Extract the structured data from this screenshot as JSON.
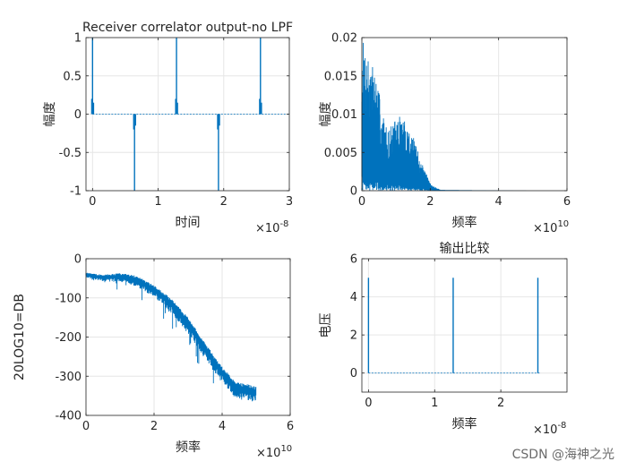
{
  "figure": {
    "background": "#ffffff",
    "line_color": "#0072BD",
    "grid_color": "#e6e6e6",
    "axis_color": "#262626"
  },
  "watermark": "CSDN @海神之光",
  "chart_data": [
    {
      "id": "p1",
      "type": "line",
      "title": "Receiver correlator output-no LPF",
      "xlabel": "时间",
      "ylabel": "幅度",
      "xlim": [
        -0.1,
        3
      ],
      "ylim": [
        -1,
        1
      ],
      "xticks": [
        0,
        1,
        2,
        3
      ],
      "xtick_labels": [
        "0",
        "1",
        "2",
        "3"
      ],
      "yticks": [
        -1,
        -0.5,
        0,
        0.5,
        1
      ],
      "ytick_labels": [
        "-1",
        "-0.5",
        "0",
        "0.5",
        "1"
      ],
      "exponent": "×10^-8",
      "exponent_base": "×10",
      "exponent_power": "-8",
      "baseline": 0,
      "x_end": 3,
      "spikes": [
        {
          "x": 0.0,
          "y": 1
        },
        {
          "x": 0.64,
          "y": -1
        },
        {
          "x": 1.28,
          "y": 1
        },
        {
          "x": 1.92,
          "y": -1
        },
        {
          "x": 2.56,
          "y": 1
        }
      ]
    },
    {
      "id": "p2",
      "type": "line",
      "title": "",
      "xlabel": "频率",
      "ylabel": "幅度",
      "xlim": [
        0,
        6
      ],
      "ylim": [
        0,
        0.02
      ],
      "xticks": [
        0,
        2,
        4,
        6
      ],
      "xtick_labels": [
        "0",
        "2",
        "4",
        "6"
      ],
      "yticks": [
        0,
        0.005,
        0.01,
        0.015,
        0.02
      ],
      "ytick_labels": [
        "0",
        "0.005",
        "0.01",
        "0.015",
        "0.02"
      ],
      "exponent": "×10^10",
      "exponent_base": "×10",
      "exponent_power": "10",
      "envelope": [
        {
          "x": 0.0,
          "y": 0.02
        },
        {
          "x": 0.2,
          "y": 0.018
        },
        {
          "x": 0.4,
          "y": 0.0155
        },
        {
          "x": 0.6,
          "y": 0.0105
        },
        {
          "x": 0.75,
          "y": 0.0078
        },
        {
          "x": 0.9,
          "y": 0.0088
        },
        {
          "x": 1.1,
          "y": 0.0098
        },
        {
          "x": 1.3,
          "y": 0.009
        },
        {
          "x": 1.55,
          "y": 0.0065
        },
        {
          "x": 1.8,
          "y": 0.003
        },
        {
          "x": 2.05,
          "y": 0.0007
        },
        {
          "x": 2.3,
          "y": 0.0001
        },
        {
          "x": 5.0,
          "y": 0.0
        }
      ]
    },
    {
      "id": "p3",
      "type": "line",
      "title": "",
      "xlabel": "频率",
      "ylabel": "20LOG10=DB",
      "xlim": [
        0,
        6
      ],
      "ylim": [
        -400,
        0
      ],
      "xticks": [
        0,
        2,
        4,
        6
      ],
      "xtick_labels": [
        "0",
        "2",
        "4",
        "6"
      ],
      "yticks": [
        -400,
        -300,
        -200,
        -100,
        0
      ],
      "ytick_labels": [
        "-400",
        "-300",
        "-200",
        "-100",
        "0"
      ],
      "exponent": "×10^10",
      "exponent_base": "×10",
      "exponent_power": "10",
      "trend": [
        {
          "x": 0.0,
          "y": -38
        },
        {
          "x": 0.5,
          "y": -45
        },
        {
          "x": 1.0,
          "y": -42
        },
        {
          "x": 1.5,
          "y": -50
        },
        {
          "x": 2.0,
          "y": -75
        },
        {
          "x": 2.5,
          "y": -110
        },
        {
          "x": 3.0,
          "y": -160
        },
        {
          "x": 3.5,
          "y": -225
        },
        {
          "x": 4.0,
          "y": -285
        },
        {
          "x": 4.4,
          "y": -325
        },
        {
          "x": 5.0,
          "y": -335
        }
      ]
    },
    {
      "id": "p4",
      "type": "line",
      "title": "输出比较",
      "xlabel": "频率",
      "ylabel": "电压",
      "xlim": [
        -0.1,
        3
      ],
      "ylim": [
        -1,
        6
      ],
      "xticks": [
        0,
        1,
        2
      ],
      "xtick_labels": [
        "0",
        "1",
        "2"
      ],
      "yticks": [
        0,
        2,
        4,
        6
      ],
      "ytick_labels": [
        "0",
        "2",
        "4",
        "6"
      ],
      "exponent": "×10^-8",
      "exponent_base": "×10",
      "exponent_power": "-8",
      "baseline": 0,
      "x_end": 2.6,
      "spikes": [
        {
          "x": 0.0,
          "y": 5
        },
        {
          "x": 1.28,
          "y": 5
        },
        {
          "x": 2.56,
          "y": 5
        }
      ]
    }
  ]
}
